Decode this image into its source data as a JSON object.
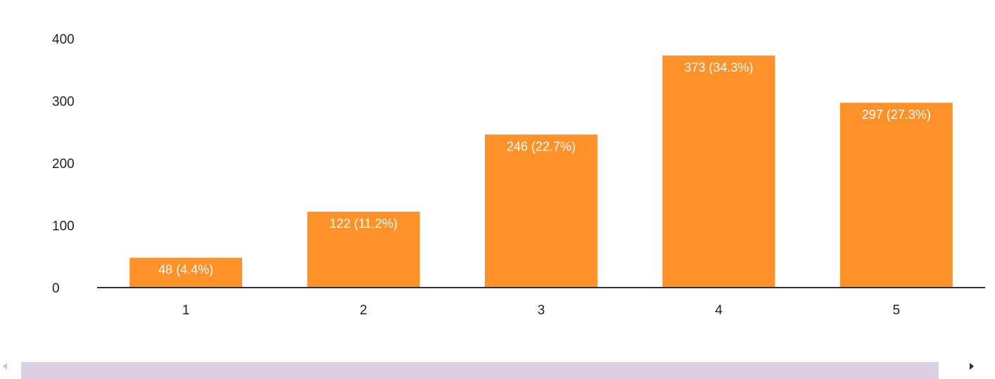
{
  "chart_data": {
    "type": "bar",
    "categories": [
      "1",
      "2",
      "3",
      "4",
      "5"
    ],
    "values": [
      48,
      122,
      246,
      373,
      297
    ],
    "data_labels": [
      "48 (4.4%)",
      "122 (11.2%)",
      "246 (22.7%)",
      "373 (34.3%)",
      "297 (27.3%)"
    ],
    "yticks": [
      "0",
      "100",
      "200",
      "300",
      "400"
    ],
    "ylim": [
      0,
      400
    ],
    "grid": false,
    "bar_color": "#ff9129",
    "label_color": "#ffffff",
    "axis_color": "#333333"
  },
  "scrollbar": {
    "left_icon": "triangle-left",
    "right_icon": "triangle-right",
    "thumb_color": "#dcd0e3"
  }
}
